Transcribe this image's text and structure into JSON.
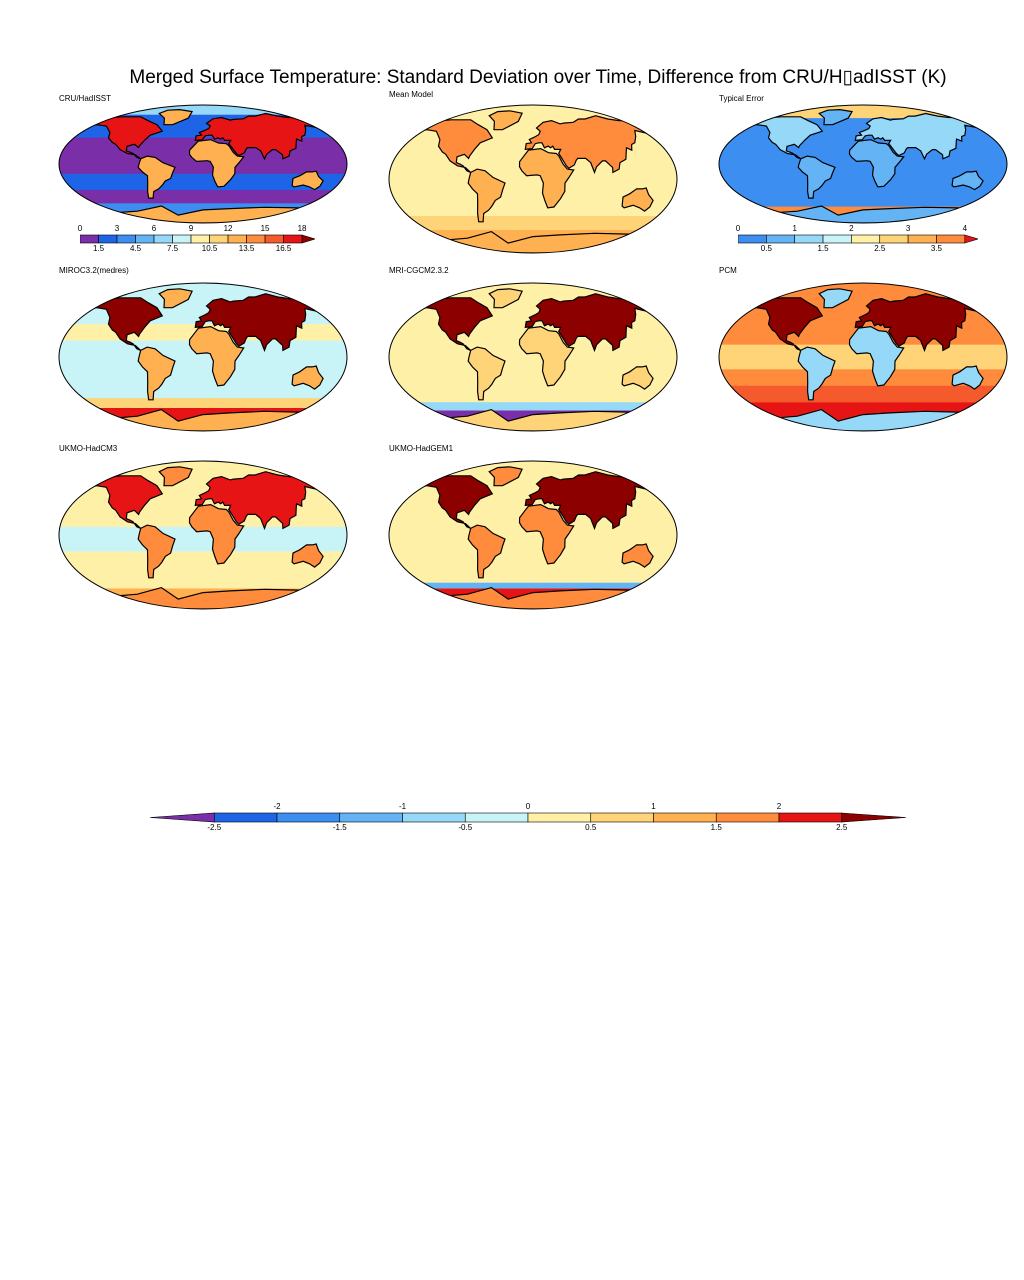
{
  "title": "Merged Surface Temperature: Standard Deviation over Time, Difference from CRU/H▯adISST (K)",
  "panels": [
    {
      "label": "CRU/HadISST",
      "style": "obs"
    },
    {
      "label": "Mean Model",
      "style": "mean"
    },
    {
      "label": "Typical Error",
      "style": "err"
    },
    {
      "label": "MIROC3.2(medres)",
      "style": "miroc"
    },
    {
      "label": "MRI-CGCM2.3.2",
      "style": "mri"
    },
    {
      "label": "PCM",
      "style": "pcm"
    },
    {
      "label": "UKMO-HadCM3",
      "style": "hadcm3"
    },
    {
      "label": "UKMO-HadGEM1",
      "style": "hadgem1"
    }
  ],
  "colorbars": {
    "obs": {
      "upper_labels": [
        "0",
        "3",
        "6",
        "9",
        "12",
        "15",
        "18"
      ],
      "lower_labels": [
        "1.5",
        "4.5",
        "7.5",
        "10.5",
        "13.5",
        "16.5"
      ],
      "colors": [
        "#7a2ea8",
        "#1e64e6",
        "#3c8ef0",
        "#64b4f5",
        "#96d8f8",
        "#c8f4f8",
        "#fff0a8",
        "#ffd478",
        "#ffb050",
        "#ff8c3c",
        "#f55a2c",
        "#e61414",
        "#8c0000"
      ]
    },
    "err": {
      "upper_labels": [
        "0",
        "1",
        "2",
        "3",
        "4"
      ],
      "lower_labels": [
        "0.5",
        "1.5",
        "2.5",
        "3.5"
      ],
      "colors": [
        "#3c8ef0",
        "#64b4f5",
        "#96d8f8",
        "#c8f4f8",
        "#fff0a8",
        "#ffd478",
        "#ffb050",
        "#ff8c3c",
        "#e61414"
      ]
    },
    "diff": {
      "upper_labels": [
        "-2",
        "-1",
        "0",
        "1",
        "2"
      ],
      "lower_labels": [
        "-2.5",
        "-1.5",
        "-0.5",
        "0.5",
        "1.5",
        "2.5"
      ],
      "colors": [
        "#7a2ea8",
        "#1e64e6",
        "#3c8ef0",
        "#64b4f5",
        "#96d8f8",
        "#c8f4f8",
        "#fff0a8",
        "#ffd478",
        "#ffb050",
        "#ff8c3c",
        "#e61414",
        "#8c0000"
      ]
    }
  }
}
